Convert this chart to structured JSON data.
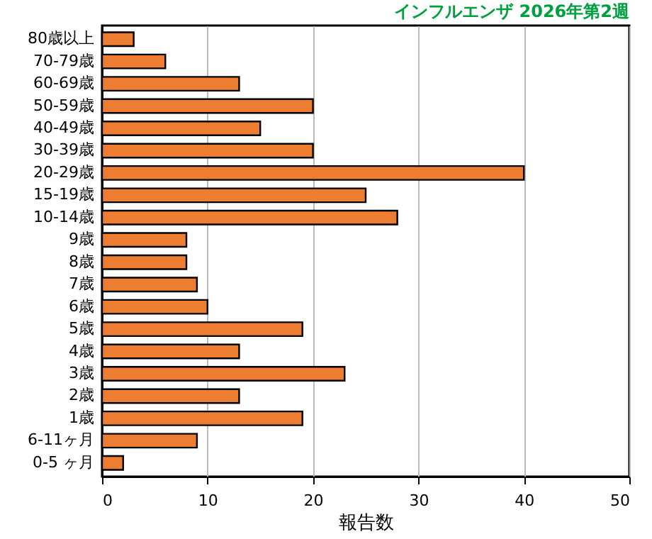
{
  "chart_data": {
    "type": "bar",
    "orientation": "horizontal",
    "title": "インフルエンザ 2026年第2週",
    "xlabel": "報告数",
    "categories": [
      "80歳以上",
      "70-79歳",
      "60-69歳",
      "50-59歳",
      "40-49歳",
      "30-39歳",
      "20-29歳",
      "15-19歳",
      "10-14歳",
      "9歳",
      "8歳",
      "7歳",
      "6歳",
      "5歳",
      "4歳",
      "3歳",
      "2歳",
      "1歳",
      "6-11ヶ月",
      "0-5 ヶ月"
    ],
    "values": [
      3,
      6,
      13,
      20,
      15,
      20,
      40,
      25,
      28,
      8,
      8,
      9,
      10,
      19,
      13,
      23,
      13,
      19,
      9,
      2
    ],
    "color": "#ed7d31",
    "xlim": [
      0,
      50
    ],
    "xticks": [
      0,
      10,
      20,
      30,
      40,
      50
    ],
    "grid": "x"
  }
}
